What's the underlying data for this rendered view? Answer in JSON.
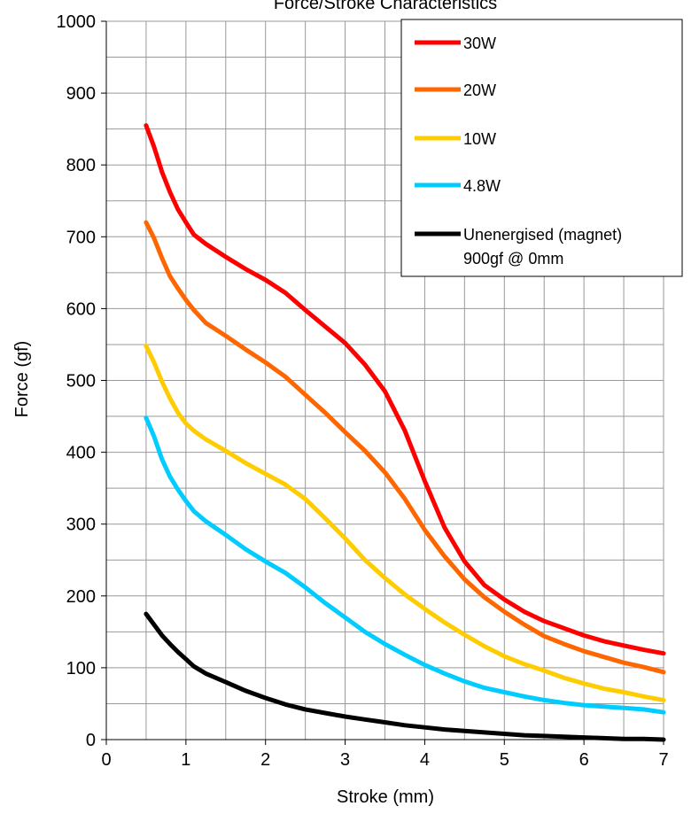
{
  "chart_data": {
    "type": "line",
    "title": "Force/Stroke Characteristics",
    "xlabel": "Stroke (mm)",
    "ylabel": "Force (gf)",
    "xlim": [
      0,
      7
    ],
    "ylim": [
      0,
      1000
    ],
    "x_ticks": [
      "0",
      "1",
      "2",
      "3",
      "4",
      "5",
      "6",
      "7"
    ],
    "y_ticks": [
      "0",
      "100",
      "200",
      "300",
      "400",
      "500",
      "600",
      "700",
      "800",
      "900",
      "1000"
    ],
    "grid": true,
    "legend_position": "top-right",
    "legend_note": "900gf @ 0mm",
    "series": [
      {
        "name": "30W",
        "color": "#ff0000",
        "points": [
          [
            0.5,
            855
          ],
          [
            0.6,
            825
          ],
          [
            0.7,
            790
          ],
          [
            0.8,
            762
          ],
          [
            0.9,
            738
          ],
          [
            1.0,
            720
          ],
          [
            1.1,
            703
          ],
          [
            1.25,
            690
          ],
          [
            1.5,
            672
          ],
          [
            1.75,
            655
          ],
          [
            2.0,
            640
          ],
          [
            2.25,
            622
          ],
          [
            2.5,
            598
          ],
          [
            2.75,
            575
          ],
          [
            3.0,
            552
          ],
          [
            3.25,
            522
          ],
          [
            3.5,
            485
          ],
          [
            3.75,
            430
          ],
          [
            4.0,
            360
          ],
          [
            4.25,
            295
          ],
          [
            4.5,
            248
          ],
          [
            4.75,
            215
          ],
          [
            5.0,
            195
          ],
          [
            5.25,
            178
          ],
          [
            5.5,
            165
          ],
          [
            5.75,
            155
          ],
          [
            6.0,
            145
          ],
          [
            6.25,
            137
          ],
          [
            6.5,
            131
          ],
          [
            6.75,
            125
          ],
          [
            7.0,
            120
          ]
        ]
      },
      {
        "name": "20W",
        "color": "#ff6600",
        "points": [
          [
            0.5,
            720
          ],
          [
            0.6,
            698
          ],
          [
            0.7,
            670
          ],
          [
            0.8,
            645
          ],
          [
            0.9,
            628
          ],
          [
            1.0,
            612
          ],
          [
            1.1,
            598
          ],
          [
            1.25,
            580
          ],
          [
            1.5,
            562
          ],
          [
            1.75,
            543
          ],
          [
            2.0,
            525
          ],
          [
            2.25,
            505
          ],
          [
            2.5,
            480
          ],
          [
            2.75,
            455
          ],
          [
            3.0,
            428
          ],
          [
            3.25,
            402
          ],
          [
            3.5,
            372
          ],
          [
            3.75,
            335
          ],
          [
            4.0,
            292
          ],
          [
            4.25,
            255
          ],
          [
            4.5,
            223
          ],
          [
            4.75,
            198
          ],
          [
            5.0,
            178
          ],
          [
            5.25,
            160
          ],
          [
            5.5,
            144
          ],
          [
            5.75,
            133
          ],
          [
            6.0,
            123
          ],
          [
            6.25,
            115
          ],
          [
            6.5,
            107
          ],
          [
            6.75,
            101
          ],
          [
            7.0,
            94
          ]
        ]
      },
      {
        "name": "10W",
        "color": "#ffcc00",
        "points": [
          [
            0.5,
            548
          ],
          [
            0.6,
            525
          ],
          [
            0.7,
            498
          ],
          [
            0.8,
            475
          ],
          [
            0.9,
            455
          ],
          [
            1.0,
            440
          ],
          [
            1.1,
            430
          ],
          [
            1.25,
            418
          ],
          [
            1.5,
            402
          ],
          [
            1.75,
            385
          ],
          [
            2.0,
            370
          ],
          [
            2.25,
            355
          ],
          [
            2.5,
            335
          ],
          [
            2.75,
            308
          ],
          [
            3.0,
            280
          ],
          [
            3.25,
            250
          ],
          [
            3.5,
            225
          ],
          [
            3.75,
            202
          ],
          [
            4.0,
            182
          ],
          [
            4.25,
            163
          ],
          [
            4.5,
            146
          ],
          [
            4.75,
            130
          ],
          [
            5.0,
            116
          ],
          [
            5.25,
            105
          ],
          [
            5.5,
            96
          ],
          [
            5.75,
            86
          ],
          [
            6.0,
            78
          ],
          [
            6.25,
            71
          ],
          [
            6.5,
            66
          ],
          [
            6.75,
            60
          ],
          [
            7.0,
            55
          ]
        ]
      },
      {
        "name": "4.8W",
        "color": "#00ccff",
        "points": [
          [
            0.5,
            448
          ],
          [
            0.6,
            422
          ],
          [
            0.7,
            390
          ],
          [
            0.8,
            366
          ],
          [
            0.9,
            348
          ],
          [
            1.0,
            332
          ],
          [
            1.1,
            318
          ],
          [
            1.25,
            304
          ],
          [
            1.5,
            285
          ],
          [
            1.75,
            265
          ],
          [
            2.0,
            248
          ],
          [
            2.25,
            232
          ],
          [
            2.5,
            212
          ],
          [
            2.75,
            190
          ],
          [
            3.0,
            170
          ],
          [
            3.25,
            150
          ],
          [
            3.5,
            133
          ],
          [
            3.75,
            118
          ],
          [
            4.0,
            104
          ],
          [
            4.25,
            92
          ],
          [
            4.5,
            81
          ],
          [
            4.75,
            72
          ],
          [
            5.0,
            66
          ],
          [
            5.25,
            60
          ],
          [
            5.5,
            55
          ],
          [
            5.75,
            51
          ],
          [
            6.0,
            48
          ],
          [
            6.25,
            46
          ],
          [
            6.5,
            44
          ],
          [
            6.75,
            42
          ],
          [
            7.0,
            38
          ]
        ]
      },
      {
        "name": "Unenergised (magnet)",
        "color": "#000000",
        "points": [
          [
            0.5,
            175
          ],
          [
            0.6,
            160
          ],
          [
            0.7,
            145
          ],
          [
            0.8,
            133
          ],
          [
            0.9,
            122
          ],
          [
            1.0,
            112
          ],
          [
            1.1,
            102
          ],
          [
            1.25,
            92
          ],
          [
            1.5,
            80
          ],
          [
            1.75,
            68
          ],
          [
            2.0,
            58
          ],
          [
            2.25,
            49
          ],
          [
            2.5,
            42
          ],
          [
            2.75,
            37
          ],
          [
            3.0,
            32
          ],
          [
            3.25,
            28
          ],
          [
            3.5,
            24
          ],
          [
            3.75,
            20
          ],
          [
            4.0,
            17
          ],
          [
            4.25,
            14
          ],
          [
            4.5,
            12
          ],
          [
            4.75,
            10
          ],
          [
            5.0,
            8
          ],
          [
            5.25,
            6
          ],
          [
            5.5,
            5
          ],
          [
            5.75,
            4
          ],
          [
            6.0,
            3
          ],
          [
            6.25,
            2
          ],
          [
            6.5,
            1
          ],
          [
            6.75,
            1
          ],
          [
            7.0,
            0
          ]
        ]
      }
    ]
  }
}
